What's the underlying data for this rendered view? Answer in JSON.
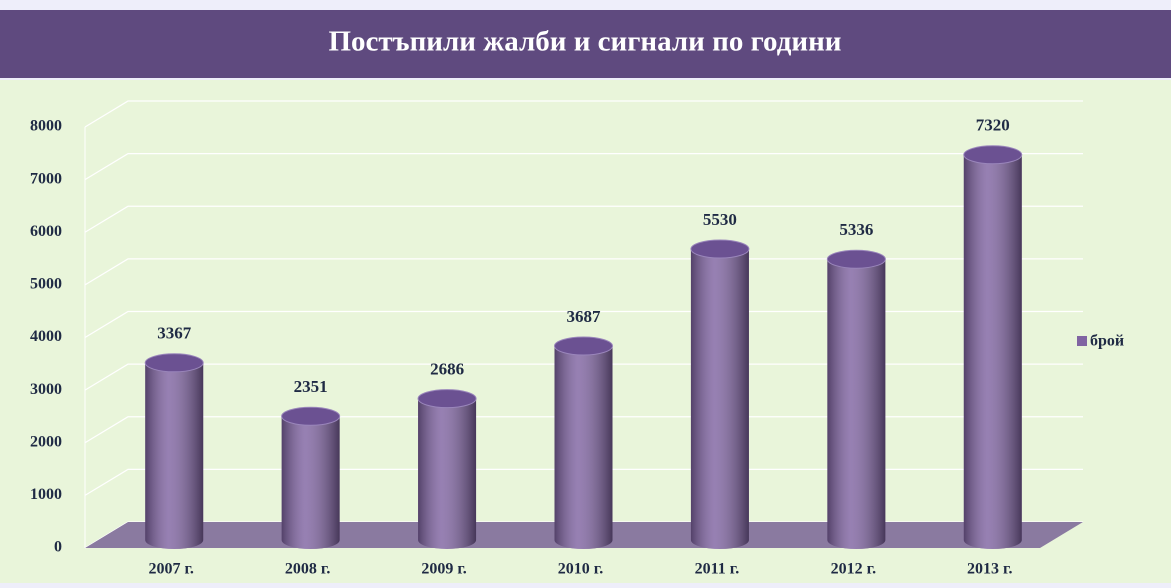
{
  "chart_data": {
    "type": "bar",
    "title": "Постъпили жалби и сигнали по години",
    "categories": [
      "2007 г.",
      "2008 г.",
      "2009 г.",
      "2010 г.",
      "2011 г.",
      "2012 г.",
      "2013 г."
    ],
    "series": [
      {
        "name": "брой",
        "color": "#8064a2",
        "values": [
          3367,
          2351,
          2686,
          3687,
          5530,
          5336,
          7320
        ]
      }
    ],
    "ylim": [
      0,
      8000
    ],
    "yticks": [
      0,
      1000,
      2000,
      3000,
      4000,
      5000,
      6000,
      7000,
      8000
    ],
    "grid": true,
    "legend": "right"
  }
}
